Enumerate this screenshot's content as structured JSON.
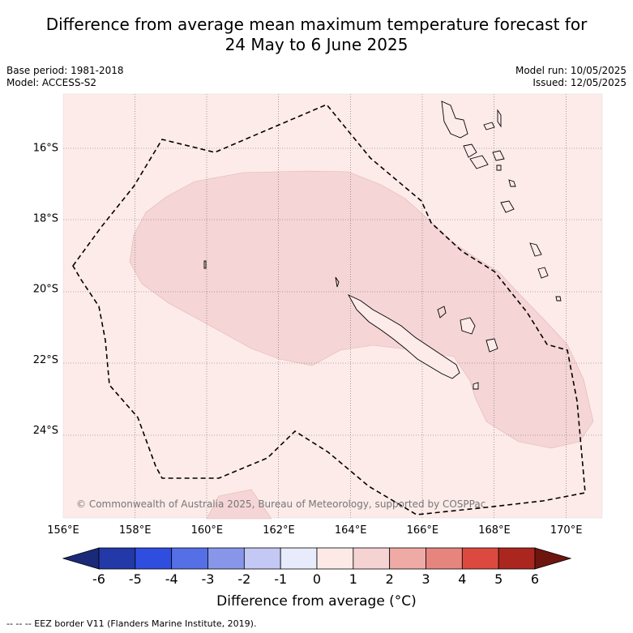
{
  "title_line1": "Difference from average mean maximum temperature forecast for",
  "title_line2": "24 May to 6 June 2025",
  "meta": {
    "base_period": "Base period: 1981-2018",
    "model": "Model: ACCESS-S2",
    "model_run": "Model run: 10/05/2025",
    "issued": "Issued: 12/05/2025"
  },
  "map": {
    "lon_ticks": [
      {
        "value": 156,
        "label": "156°E"
      },
      {
        "value": 158,
        "label": "158°E"
      },
      {
        "value": 160,
        "label": "160°E"
      },
      {
        "value": 162,
        "label": "162°E"
      },
      {
        "value": 164,
        "label": "164°E"
      },
      {
        "value": 166,
        "label": "166°E"
      },
      {
        "value": 168,
        "label": "168°E"
      },
      {
        "value": 170,
        "label": "170°E"
      }
    ],
    "lat_ticks": [
      {
        "value": -16,
        "label": "16°S"
      },
      {
        "value": -18,
        "label": "18°S"
      },
      {
        "value": -20,
        "label": "20°S"
      },
      {
        "value": -22,
        "label": "22°S"
      },
      {
        "value": -24,
        "label": "24°S"
      }
    ],
    "lon_range": [
      156,
      171
    ],
    "lat_range": [
      -26.5,
      -14.5
    ],
    "copyright": "© Commonwealth of Australia 2025, Bureau of Meteorology, supported by COSPPac"
  },
  "colorbar": {
    "ticks": [
      "-6",
      "-5",
      "-4",
      "-3",
      "-2",
      "-1",
      "0",
      "1",
      "2",
      "3",
      "4",
      "5",
      "6"
    ],
    "colors": [
      "#1a2a78",
      "#2339a8",
      "#2f4ee0",
      "#5570e6",
      "#8896ea",
      "#c3c8f5",
      "#e8ebfb",
      "#fdeae7",
      "#f6d3d3",
      "#efaaa5",
      "#e6857e",
      "#dc4a3f",
      "#ac2620",
      "#6e1510"
    ],
    "label": "Difference from average (°C)"
  },
  "footer": "--  --  -- EEZ border V11 (Flanders Marine Institute, 2019)."
}
